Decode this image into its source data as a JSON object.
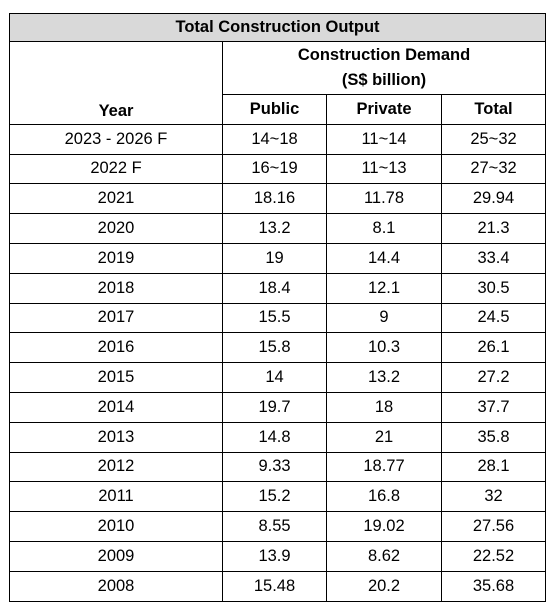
{
  "table": {
    "title": "Total Construction Output",
    "group_header": "Construction Demand",
    "group_unit": "(S$ billion)",
    "headers": [
      "Year",
      "Public",
      "Private",
      "Total"
    ],
    "rows": [
      [
        "2023 - 2026 F",
        "14~18",
        "11~14",
        "25~32"
      ],
      [
        "2022 F",
        "16~19",
        "11~13",
        "27~32"
      ],
      [
        "2021",
        "18.16",
        "11.78",
        "29.94"
      ],
      [
        "2020",
        "13.2",
        "8.1",
        "21.3"
      ],
      [
        "2019",
        "19",
        "14.4",
        "33.4"
      ],
      [
        "2018",
        "18.4",
        "12.1",
        "30.5"
      ],
      [
        "2017",
        "15.5",
        "9",
        "24.5"
      ],
      [
        "2016",
        "15.8",
        "10.3",
        "26.1"
      ],
      [
        "2015",
        "14",
        "13.2",
        "27.2"
      ],
      [
        "2014",
        "19.7",
        "18",
        "37.7"
      ],
      [
        "2013",
        "14.8",
        "21",
        "35.8"
      ],
      [
        "2012",
        "9.33",
        "18.77",
        "28.1"
      ],
      [
        "2011",
        "15.2",
        "16.8",
        "32"
      ],
      [
        "2010",
        "8.55",
        "19.02",
        "27.56"
      ],
      [
        "2009",
        "13.9",
        "8.62",
        "22.52"
      ],
      [
        "2008",
        "15.48",
        "20.2",
        "35.68"
      ]
    ]
  }
}
